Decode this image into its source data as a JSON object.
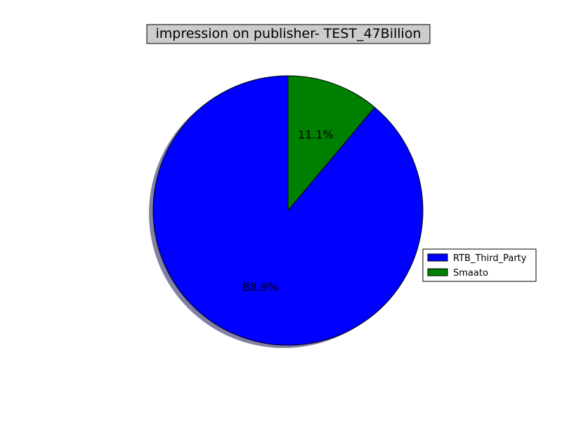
{
  "chart_data": {
    "type": "pie",
    "title": "impression on publisher- TEST_47Billion",
    "categories": [
      "RTB_Third_Party",
      "Smaato"
    ],
    "values": [
      88.9,
      11.1
    ],
    "labels": [
      "88.9%",
      "11.1%"
    ],
    "colors": [
      "#0000ff",
      "#008000"
    ],
    "shadow": true,
    "legend": {
      "position": "right",
      "entries": [
        "RTB_Third_Party",
        "Smaato"
      ]
    }
  }
}
